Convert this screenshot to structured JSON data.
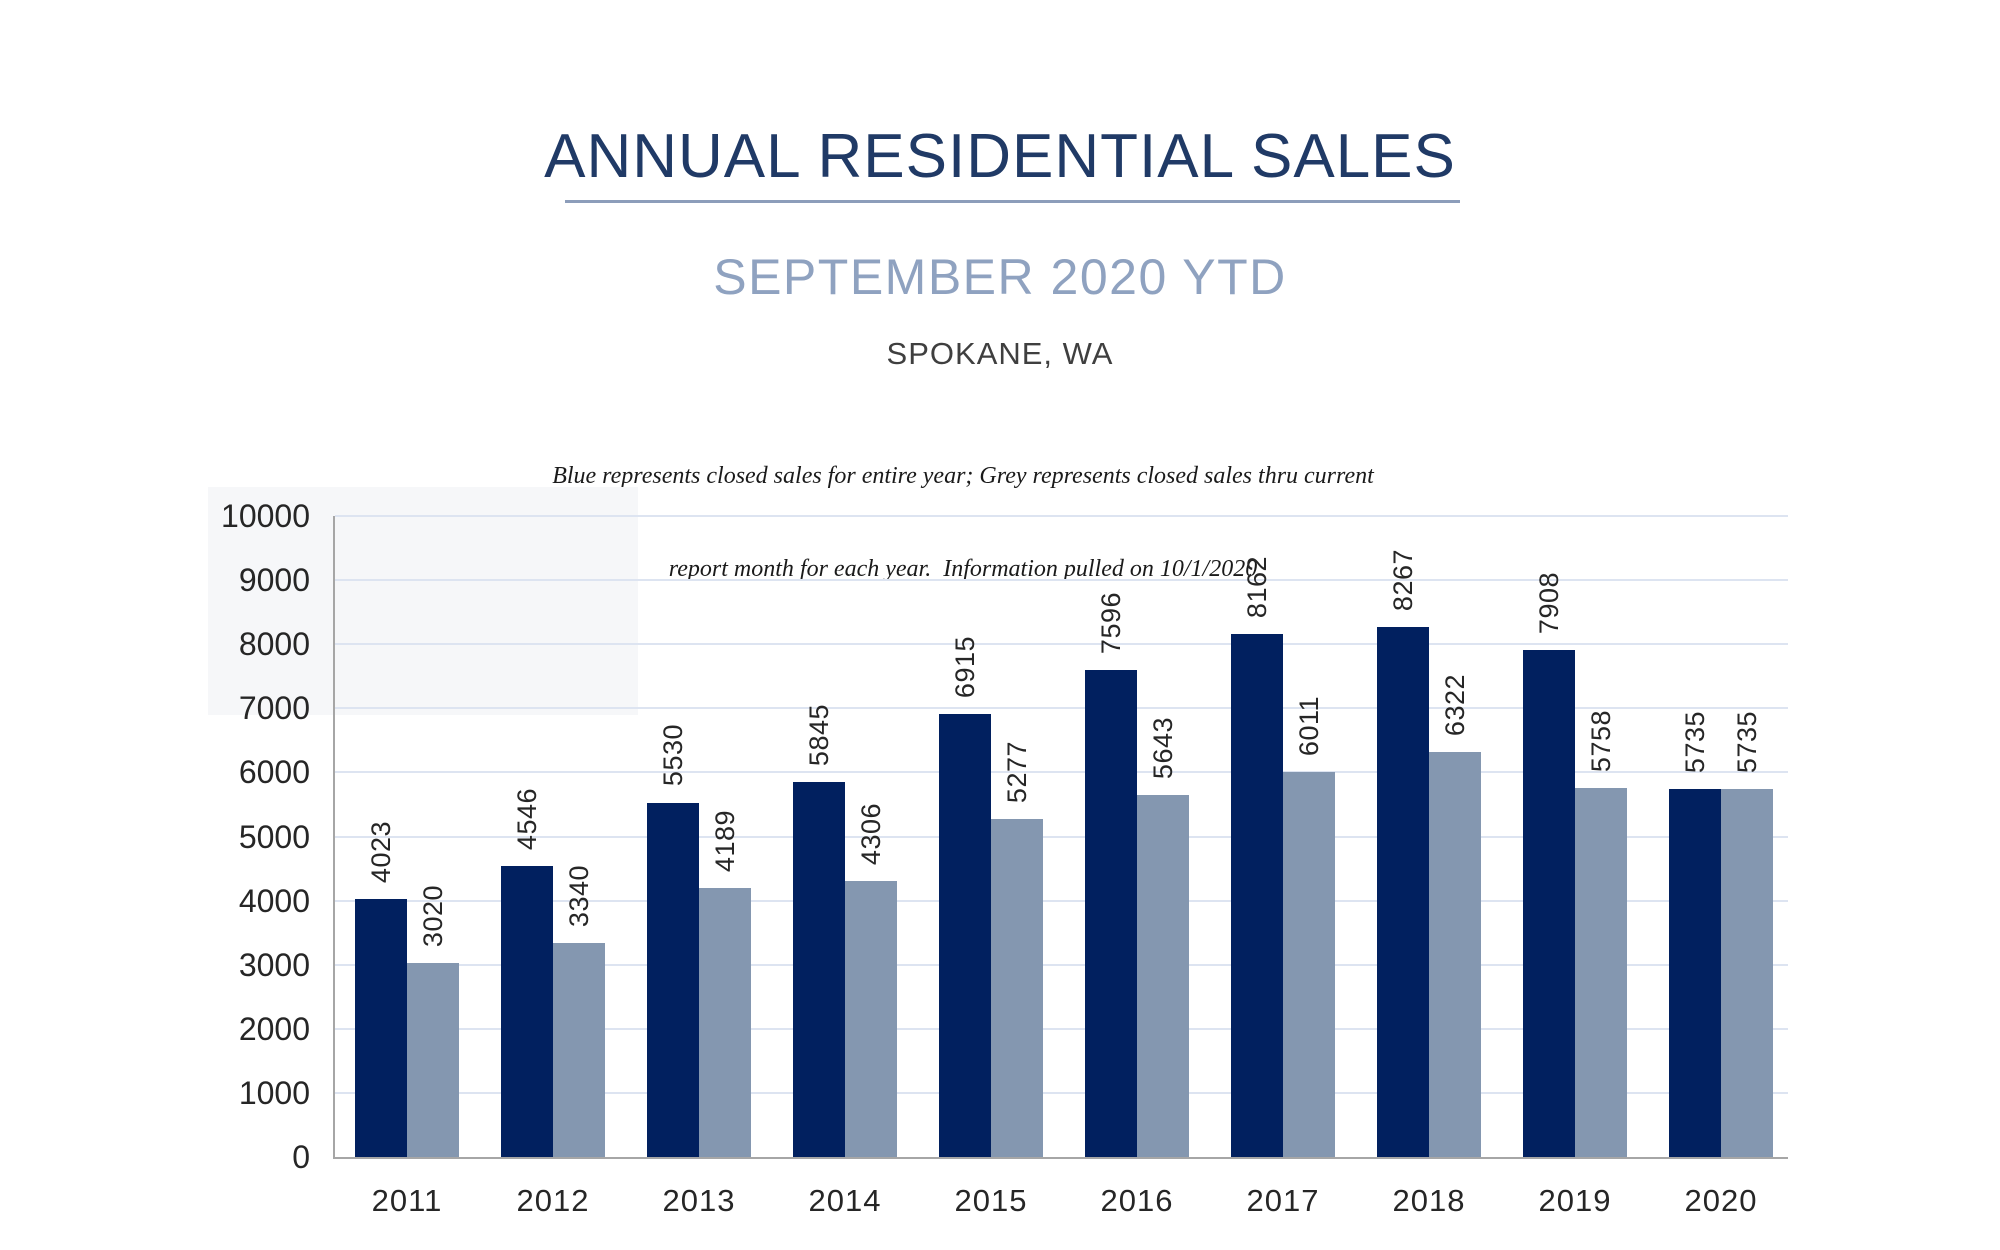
{
  "header": {
    "title": "ANNUAL RESIDENTIAL SALES",
    "subtitle": "SEPTEMBER 2020 YTD",
    "location": "SPOKANE, WA",
    "note_line1": "Blue represents closed sales for entire year; Grey represents closed sales thru current",
    "note_line2": "report month for each year.  Information pulled on 10/1/2020"
  },
  "colors": {
    "title": "#203a66",
    "subtitle": "#8fa2c0",
    "underline": "#8c9dba",
    "bar_blue": "#01205f",
    "bar_grey": "#8497b0",
    "gridline": "#dde4f1",
    "axis_line": "#a6a6a6",
    "label_text": "#262626"
  },
  "chart_data": {
    "type": "bar",
    "title": "ANNUAL RESIDENTIAL SALES",
    "subtitle": "SEPTEMBER 2020 YTD",
    "region": "SPOKANE, WA",
    "categories": [
      "2011",
      "2012",
      "2013",
      "2014",
      "2015",
      "2016",
      "2017",
      "2018",
      "2019",
      "2020"
    ],
    "series": [
      {
        "key": "annual",
        "name": "Closed sales for entire year (Blue)",
        "color_key": "bar_blue",
        "values": [
          4023,
          4546,
          5530,
          5845,
          6915,
          7596,
          8162,
          8267,
          7908,
          5735
        ]
      },
      {
        "key": "ytd",
        "name": "Closed sales thru current report month (Grey)",
        "color_key": "bar_grey",
        "values": [
          3020,
          3340,
          4189,
          4306,
          5277,
          5643,
          6011,
          6322,
          5758,
          5735
        ]
      }
    ],
    "xlabel": "",
    "ylabel": "",
    "ylim": [
      0,
      10000
    ],
    "ytick_step": 1000,
    "grid": true,
    "legend_position": "none",
    "data_labels": "rotated-90-above-bars",
    "info_pulled_on": "10/1/2020"
  }
}
